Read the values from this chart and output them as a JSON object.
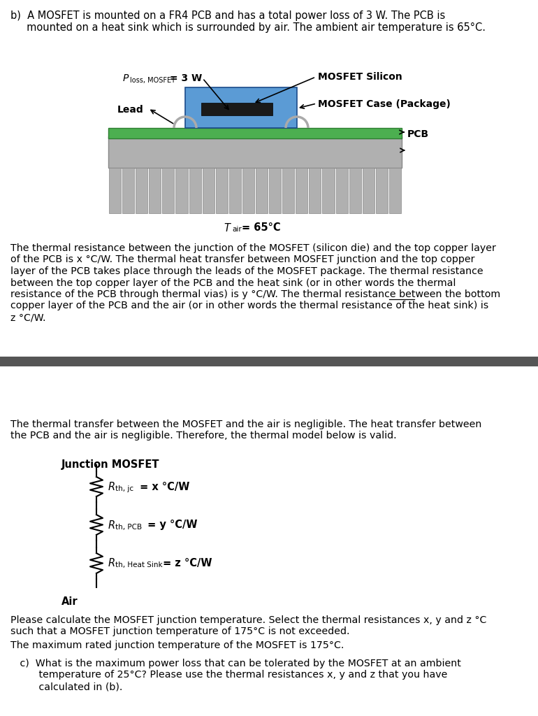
{
  "bg_color": "#ffffff",
  "divider_color": "#555555",
  "heatsink_color": "#b0b0b0",
  "pcb_color": "#4caf50",
  "mosfet_pkg_color": "#5b9bd5",
  "mosfet_die_color": "#1a1a1a",
  "lead_color": "#aaaaaa",
  "label_mosfet_silicon": "MOSFET Silicon",
  "label_mosfet_case": "MOSFET Case (Package)",
  "label_pcb": "PCB",
  "label_lead": "Lead",
  "junction_label": "Junction MOSFET",
  "air_label": "Air",
  "title_b_line1": "b)  A MOSFET is mounted on a FR4 PCB and has a total power loss of 3 W. The PCB is",
  "title_b_line2": "     mounted on a heat sink which is surrounded by air. The ambient air temperature is 65°C.",
  "para1_lines": [
    "The thermal resistance between the junction of the MOSFET (silicon die) and the top copper layer",
    "of the PCB is x °C/W. The thermal heat transfer between MOSFET junction and the top copper",
    "layer of the PCB takes place through the leads of the MOSFET package. The thermal resistance",
    "between the top copper layer of the PCB and the heat sink (or in other words the thermal",
    "resistance of the PCB through thermal vias) is y °C/W. The thermal resistance between the ",
    "bottom",
    "copper layer of the PCB and the air (or in other words the thermal resistance of the heat sink) is",
    "z °C/W."
  ],
  "para2_lines": [
    "The thermal transfer between the MOSFET and the air is negligible. The heat transfer between",
    "the PCB and the air is negligible. Therefore, the thermal model below is valid."
  ],
  "para3_lines": [
    "Please calculate the MOSFET junction temperature. Select the thermal resistances x, y and z °C",
    "such that a MOSFET junction temperature of 175°C is not exceeded."
  ],
  "para4": "The maximum rated junction temperature of the MOSFET is 175°C.",
  "para5_c_lines": [
    "   c)  What is the maximum power loss that can be tolerated by the MOSFET at an ambient",
    "         temperature of 25°C? Please use the thermal resistances x, y and z that you have",
    "         calculated in (b)."
  ]
}
